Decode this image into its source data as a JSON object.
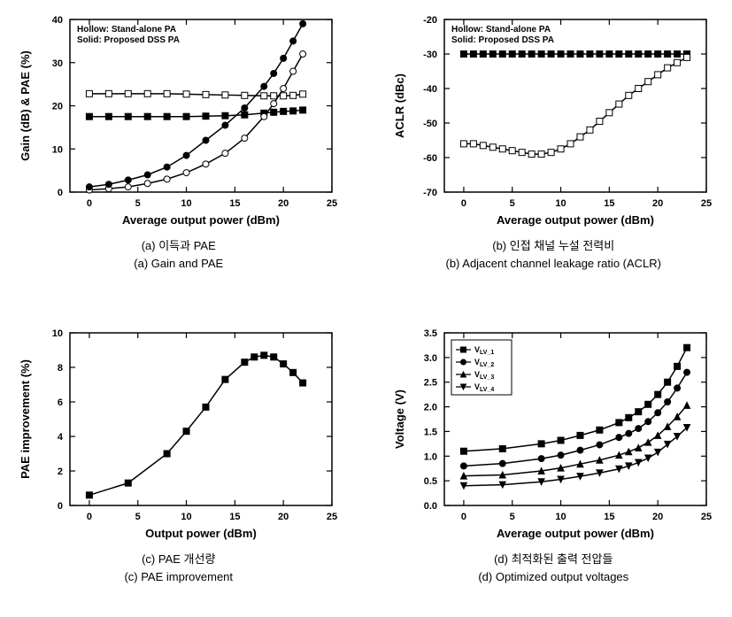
{
  "layout": {
    "rows": 2,
    "cols": 2,
    "bg": "#ffffff",
    "stroke": "#000000",
    "line_width": 1.5,
    "marker_size": 3.5,
    "axis_font": 13,
    "tick_font": 11,
    "legend_font": 10
  },
  "panel_a": {
    "caption1": "(a) 이득과 PAE",
    "caption2": "(a) Gain and PAE",
    "xlabel": "Average output power (dBm)",
    "ylabel": "Gain (dB) & PAE (%)",
    "xlim": [
      -2,
      25
    ],
    "xtick_step": 5,
    "ylim": [
      0,
      40
    ],
    "ytick_step": 10,
    "note1": "Hollow: Stand-alone PA",
    "note2": "Solid: Proposed DSS PA",
    "series": [
      {
        "marker": "square",
        "fill": "#ffffff",
        "stroke": "#000000",
        "x": [
          0,
          2,
          4,
          6,
          8,
          10,
          12,
          14,
          16,
          18,
          19,
          20,
          21,
          22
        ],
        "y": [
          22.8,
          22.8,
          22.8,
          22.8,
          22.8,
          22.7,
          22.6,
          22.5,
          22.4,
          22.3,
          22.3,
          22.3,
          22.4,
          22.7
        ]
      },
      {
        "marker": "square",
        "fill": "#000000",
        "stroke": "#000000",
        "x": [
          0,
          2,
          4,
          6,
          8,
          10,
          12,
          14,
          16,
          18,
          19,
          20,
          21,
          22
        ],
        "y": [
          17.5,
          17.5,
          17.5,
          17.5,
          17.5,
          17.5,
          17.6,
          17.7,
          17.9,
          18.3,
          18.5,
          18.7,
          18.8,
          19.0
        ]
      },
      {
        "marker": "circle",
        "fill": "#ffffff",
        "stroke": "#000000",
        "x": [
          0,
          2,
          4,
          6,
          8,
          10,
          12,
          14,
          16,
          18,
          19,
          20,
          21,
          22
        ],
        "y": [
          0.5,
          0.8,
          1.2,
          2.0,
          3.0,
          4.5,
          6.5,
          9.0,
          12.5,
          17.5,
          20.5,
          24.0,
          28.0,
          32.0
        ]
      },
      {
        "marker": "circle",
        "fill": "#000000",
        "stroke": "#000000",
        "x": [
          0,
          2,
          4,
          6,
          8,
          10,
          12,
          14,
          16,
          18,
          19,
          20,
          21,
          22
        ],
        "y": [
          1.2,
          1.8,
          2.8,
          4.0,
          5.8,
          8.5,
          12.0,
          15.5,
          19.5,
          24.5,
          27.5,
          31.0,
          35.0,
          39.0
        ]
      }
    ]
  },
  "panel_b": {
    "caption1": "(b) 인접 채널 누설 전력비",
    "caption2": "(b) Adjacent channel leakage ratio (ACLR)",
    "xlabel": "Average output power (dBm)",
    "ylabel": "ACLR (dBc)",
    "xlim": [
      -2,
      25
    ],
    "xtick_step": 5,
    "ylim": [
      -70,
      -20
    ],
    "ytick_step": 10,
    "note1": "Hollow: Stand-alone PA",
    "note2": "Solid: Proposed DSS PA",
    "series": [
      {
        "marker": "square",
        "fill": "#000000",
        "stroke": "#000000",
        "x": [
          0,
          1,
          2,
          3,
          4,
          5,
          6,
          7,
          8,
          9,
          10,
          11,
          12,
          13,
          14,
          15,
          16,
          17,
          18,
          19,
          20,
          21,
          22,
          23
        ],
        "y": [
          -30,
          -30,
          -30,
          -30,
          -30,
          -30,
          -30,
          -30,
          -30,
          -30,
          -30,
          -30,
          -30,
          -30,
          -30,
          -30,
          -30,
          -30,
          -30,
          -30,
          -30,
          -30,
          -30,
          -30
        ]
      },
      {
        "marker": "square",
        "fill": "#ffffff",
        "stroke": "#000000",
        "x": [
          0,
          1,
          2,
          3,
          4,
          5,
          6,
          7,
          8,
          9,
          10,
          11,
          12,
          13,
          14,
          15,
          16,
          17,
          18,
          19,
          20,
          21,
          22,
          23
        ],
        "y": [
          -56,
          -56,
          -56.5,
          -57,
          -57.5,
          -58,
          -58.5,
          -59,
          -59,
          -58.5,
          -57.5,
          -56,
          -54,
          -52,
          -49.5,
          -47,
          -44.5,
          -42,
          -40,
          -38,
          -36,
          -34,
          -32.5,
          -31
        ]
      }
    ]
  },
  "panel_c": {
    "caption1": "(c) PAE 개선량",
    "caption2": "(c) PAE improvement",
    "xlabel": "Output power (dBm)",
    "ylabel": "PAE improvement (%)",
    "xlim": [
      -2,
      25
    ],
    "xtick_step": 5,
    "ylim": [
      0,
      10
    ],
    "ytick_step": 2,
    "series": [
      {
        "marker": "square",
        "fill": "#000000",
        "stroke": "#000000",
        "x": [
          0,
          4,
          8,
          10,
          12,
          14,
          16,
          17,
          18,
          19,
          20,
          21,
          22
        ],
        "y": [
          0.6,
          1.3,
          3.0,
          4.3,
          5.7,
          7.3,
          8.3,
          8.6,
          8.7,
          8.6,
          8.2,
          7.7,
          7.1
        ]
      }
    ]
  },
  "panel_d": {
    "caption1": "(d) 최적화된 출력 전압들",
    "caption2": "(d) Optimized output voltages",
    "xlabel": "Average output power (dBm)",
    "ylabel": "Voltage (V)",
    "xlim": [
      -2,
      25
    ],
    "xtick_step": 5,
    "ylim": [
      0,
      3.5
    ],
    "ytick_step": 0.5,
    "legend": [
      "V_LV_1",
      "V_LV_2",
      "V_LV_3",
      "V_LV_4"
    ],
    "legend_markers": [
      "square",
      "circle",
      "triangle",
      "invtriangle"
    ],
    "series": [
      {
        "marker": "square",
        "fill": "#000000",
        "stroke": "#000000",
        "x": [
          0,
          4,
          8,
          10,
          12,
          14,
          16,
          17,
          18,
          19,
          20,
          21,
          22,
          23
        ],
        "y": [
          1.1,
          1.15,
          1.25,
          1.32,
          1.42,
          1.53,
          1.68,
          1.78,
          1.9,
          2.05,
          2.25,
          2.5,
          2.82,
          3.2
        ]
      },
      {
        "marker": "circle",
        "fill": "#000000",
        "stroke": "#000000",
        "x": [
          0,
          4,
          8,
          10,
          12,
          14,
          16,
          17,
          18,
          19,
          20,
          21,
          22,
          23
        ],
        "y": [
          0.8,
          0.85,
          0.95,
          1.02,
          1.12,
          1.23,
          1.38,
          1.46,
          1.56,
          1.7,
          1.88,
          2.1,
          2.38,
          2.7
        ]
      },
      {
        "marker": "triangle",
        "fill": "#000000",
        "stroke": "#000000",
        "x": [
          0,
          4,
          8,
          10,
          12,
          14,
          16,
          17,
          18,
          19,
          20,
          21,
          22,
          23
        ],
        "y": [
          0.6,
          0.62,
          0.7,
          0.76,
          0.84,
          0.92,
          1.02,
          1.09,
          1.17,
          1.28,
          1.42,
          1.6,
          1.8,
          2.03
        ]
      },
      {
        "marker": "invtriangle",
        "fill": "#000000",
        "stroke": "#000000",
        "x": [
          0,
          4,
          8,
          10,
          12,
          14,
          16,
          17,
          18,
          19,
          20,
          21,
          22,
          23
        ],
        "y": [
          0.4,
          0.42,
          0.48,
          0.53,
          0.59,
          0.66,
          0.74,
          0.8,
          0.87,
          0.96,
          1.08,
          1.24,
          1.4,
          1.58
        ]
      }
    ]
  }
}
